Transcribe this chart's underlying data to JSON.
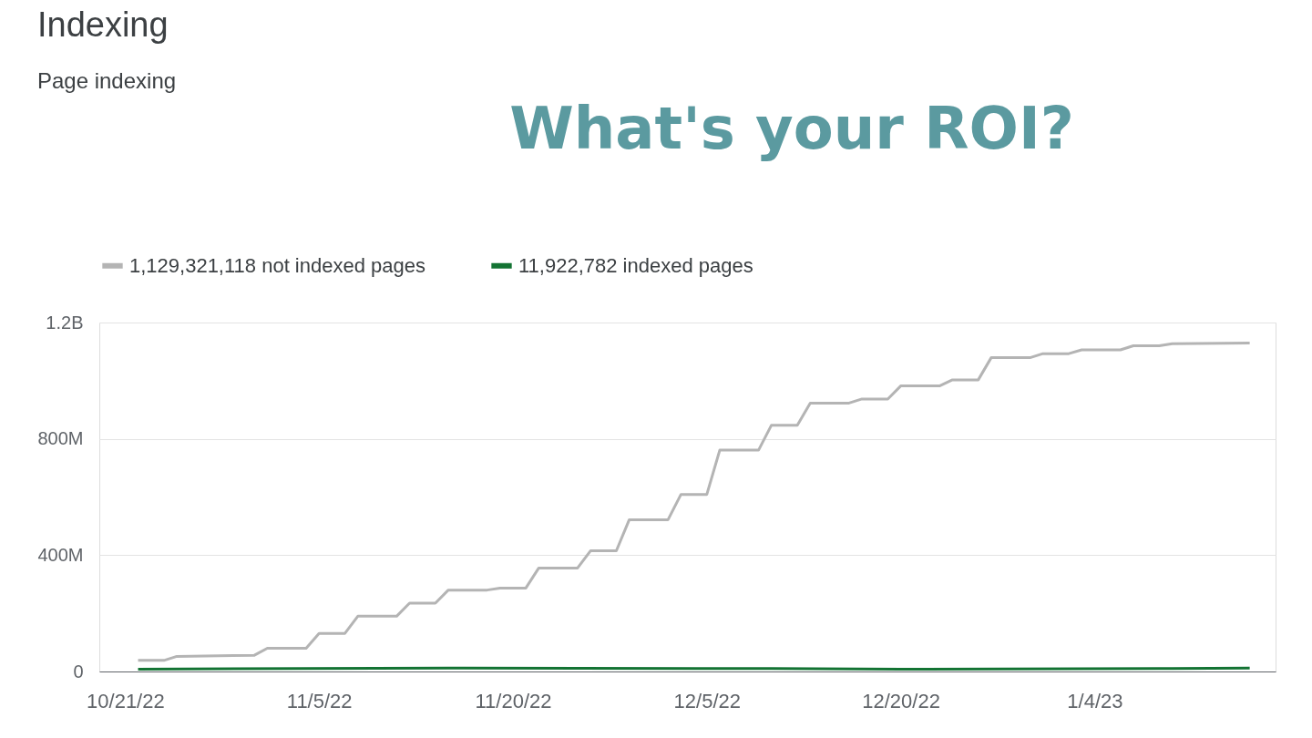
{
  "chart_data": {
    "type": "line",
    "title": "Indexing",
    "subtitle": "Page indexing",
    "annotations": [
      "What's your ROI?"
    ],
    "series": [
      {
        "name": "1,129,321,118 not indexed pages",
        "color": "#b4b4b4",
        "x": [
          "2022-10-22",
          "2022-10-24",
          "2022-10-25",
          "2022-10-31",
          "2022-11-01",
          "2022-11-04",
          "2022-11-05",
          "2022-11-07",
          "2022-11-08",
          "2022-11-11",
          "2022-11-12",
          "2022-11-14",
          "2022-11-15",
          "2022-11-18",
          "2022-11-19",
          "2022-11-21",
          "2022-11-22",
          "2022-11-25",
          "2022-11-26",
          "2022-11-28",
          "2022-11-29",
          "2022-12-02",
          "2022-12-03",
          "2022-12-05",
          "2022-12-06",
          "2022-12-09",
          "2022-12-10",
          "2022-12-12",
          "2022-12-13",
          "2022-12-16",
          "2022-12-17",
          "2022-12-19",
          "2022-12-20",
          "2022-12-23",
          "2022-12-24",
          "2022-12-26",
          "2022-12-27",
          "2022-12-30",
          "2022-12-31",
          "2023-01-02",
          "2023-01-03",
          "2023-01-06",
          "2023-01-07",
          "2023-01-09",
          "2023-01-10",
          "2023-01-16"
        ],
        "values": [
          38000000,
          38000000,
          52000000,
          56000000,
          80000000,
          80000000,
          131000000,
          131000000,
          190000000,
          190000000,
          235000000,
          235000000,
          280000000,
          280000000,
          287000000,
          287000000,
          356000000,
          356000000,
          415000000,
          415000000,
          522000000,
          522000000,
          609000000,
          609000000,
          761000000,
          761000000,
          847000000,
          847000000,
          923000000,
          923000000,
          937000000,
          937000000,
          982000000,
          982000000,
          1003000000,
          1003000000,
          1079000000,
          1079000000,
          1093000000,
          1093000000,
          1106000000,
          1106000000,
          1120000000,
          1120000000,
          1127000000,
          1129321118
        ]
      },
      {
        "name": "11,922,782 indexed pages",
        "color": "#137333",
        "x": [
          "2022-10-22",
          "2022-11-15",
          "2022-12-10",
          "2022-12-20",
          "2023-01-10",
          "2023-01-16"
        ],
        "values": [
          8000000,
          12000000,
          10000000,
          8000000,
          10000000,
          11922782
        ]
      }
    ],
    "xlim": [
      "2022-10-19",
      "2023-01-18"
    ],
    "xticks": [
      {
        "value": "2022-10-21",
        "label": "10/21/22"
      },
      {
        "value": "2022-11-05",
        "label": "11/5/22"
      },
      {
        "value": "2022-11-20",
        "label": "11/20/22"
      },
      {
        "value": "2022-12-05",
        "label": "12/5/22"
      },
      {
        "value": "2022-12-20",
        "label": "12/20/22"
      },
      {
        "value": "2023-01-04",
        "label": "1/4/23"
      }
    ],
    "ylim": [
      0,
      1200000000
    ],
    "yticks": [
      0,
      {
        "value": 400000000,
        "label": "400M"
      },
      {
        "value": 800000000,
        "label": "800M"
      },
      {
        "value": 1200000000,
        "label": "1.2B"
      }
    ],
    "grid": "y",
    "legend": "top left",
    "marker": "none",
    "line_style": "solid"
  }
}
